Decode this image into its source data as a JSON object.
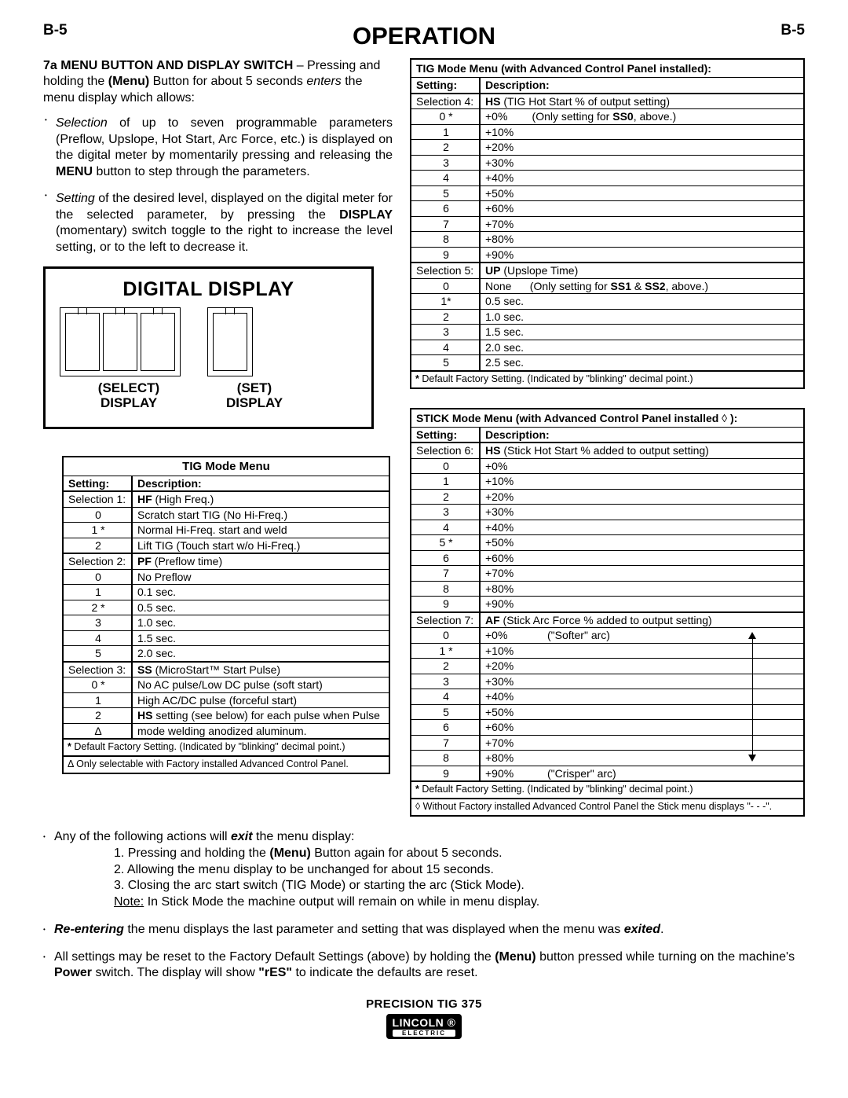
{
  "page_label": "B-5",
  "title": "OPERATION",
  "intro": {
    "heading": "7a MENU BUTTON AND DISPLAY SWITCH",
    "heading_suffix": " –",
    "line1a": "Pressing and holding the ",
    "line1b": "(Menu)",
    "line1c": " Button for about 5 seconds ",
    "line1d": "enters",
    "line1e": " the menu display which allows:",
    "bullet1a": "Selection",
    "bullet1b": " of up to seven programmable parameters (Preflow, Upslope, Hot Start, Arc Force, etc.) is dis­played on the digital meter by momentarily pressing and releasing the ",
    "bullet1c": "MENU",
    "bullet1d": " button to step through the parameters.",
    "bullet2a": "Setting",
    "bullet2b": " of the desired level, displayed on the digital meter for the selected parameter, by pressing the ",
    "bullet2c": "DISPLAY",
    "bullet2d": " (momentary) switch toggle to the right to increase the level setting, or to the left to decrease it."
  },
  "diagram": {
    "title": "DIGITAL DISPLAY",
    "select_top": "(SELECT)",
    "select_bot": "DISPLAY",
    "set_top": "(SET)",
    "set_bot": "DISPLAY"
  },
  "table1": {
    "caption": "TIG Mode Menu",
    "col1": "Setting:",
    "col2": "Description:",
    "rows": [
      {
        "s": "Selection 1:",
        "d_b": "HF",
        "d": " (High Freq.)",
        "sect": true
      },
      {
        "s": "0",
        "d": "Scratch start TIG (No Hi-Freq.)"
      },
      {
        "s": "1 *",
        "d": "Normal Hi-Freq. start and weld"
      },
      {
        "s": "2",
        "d": "Lift TIG (Touch start w/o Hi-Freq.)"
      },
      {
        "s": "Selection 2:",
        "d_b": "PF",
        "d": " (Preflow time)",
        "sect": true
      },
      {
        "s": "0",
        "d": "No Preflow"
      },
      {
        "s": "1",
        "d": "0.1 sec."
      },
      {
        "s": "2 *",
        "d": "0.5 sec."
      },
      {
        "s": "3",
        "d": "1.0 sec."
      },
      {
        "s": "4",
        "d": "1.5 sec."
      },
      {
        "s": "5",
        "d": "2.0 sec."
      },
      {
        "s": "Selection 3:",
        "d_b": "SS",
        "d": " (MicroStart™ Start Pulse)",
        "sect": true
      },
      {
        "s": "0 *",
        "d": "No AC pulse/Low DC pulse (soft start)"
      },
      {
        "s": "1",
        "d": "High AC/DC pulse (forceful start)"
      },
      {
        "s": "2",
        "d_b": "HS",
        "d": " setting (see below) for each pulse when Pulse"
      },
      {
        "s": "Δ",
        "d": "mode welding anodized aluminum.",
        "last": true
      }
    ],
    "note1_pre": "*",
    "note1": " Default Factory Setting. (Indicated by \"blinking\" decimal point.)",
    "note2_pre": "Δ",
    "note2": " Only selectable with Factory installed Advanced Control Panel."
  },
  "table2": {
    "caption": "TIG Mode Menu (with Advanced Control Panel installed):",
    "col1": "Setting:",
    "col2": "Description:",
    "rows": [
      {
        "s": "Selection 4:",
        "d_b": "HS",
        "d": " (TIG Hot Start % of output setting)",
        "sect": true
      },
      {
        "s": "0 *",
        "d": "+0%        (Only setting for ",
        "d_b2": "SS0",
        "d2": ", above.)"
      },
      {
        "s": "1",
        "d": "+10%"
      },
      {
        "s": "2",
        "d": "+20%"
      },
      {
        "s": "3",
        "d": "+30%"
      },
      {
        "s": "4",
        "d": "+40%"
      },
      {
        "s": "5",
        "d": "+50%"
      },
      {
        "s": "6",
        "d": "+60%"
      },
      {
        "s": "7",
        "d": "+70%"
      },
      {
        "s": "8",
        "d": "+80%"
      },
      {
        "s": "9",
        "d": "+90%"
      },
      {
        "s": "Selection 5:",
        "d_b": "UP",
        "d": " (Upslope Time)",
        "sect": true
      },
      {
        "s": "0",
        "d": "None      (Only setting for ",
        "d_b2": "SS1",
        "d2": " & ",
        "d_b3": "SS2",
        "d3": ", above.)"
      },
      {
        "s": "1*",
        "d": "0.5 sec."
      },
      {
        "s": "2",
        "d": "1.0 sec."
      },
      {
        "s": "3",
        "d": "1.5 sec."
      },
      {
        "s": "4",
        "d": "2.0 sec."
      },
      {
        "s": "5",
        "d": "2.5 sec.",
        "last": true
      }
    ],
    "note1_pre": "*",
    "note1": " Default Factory Setting. (Indicated by \"blinking\" decimal point.)"
  },
  "table3": {
    "caption_a": "STICK Mode Menu ",
    "caption_b": "(with Advanced Control Panel installed",
    "caption_c": " ◊ ",
    "caption_d": "):",
    "col1": "Setting:",
    "col2": "Description:",
    "rows": [
      {
        "s": "Selection 6:",
        "d_b": "HS",
        "d": " (Stick Hot Start % added to output setting)",
        "sect": true
      },
      {
        "s": "0",
        "d": "+0%"
      },
      {
        "s": "1",
        "d": "+10%"
      },
      {
        "s": "2",
        "d": "+20%"
      },
      {
        "s": "3",
        "d": "+30%"
      },
      {
        "s": "4",
        "d": "+40%"
      },
      {
        "s": "5 *",
        "d": "+50%"
      },
      {
        "s": "6",
        "d": "+60%"
      },
      {
        "s": "7",
        "d": "+70%"
      },
      {
        "s": "8",
        "d": "+80%"
      },
      {
        "s": "9",
        "d": "+90%"
      },
      {
        "s": "Selection 7:",
        "d_b": "AF",
        "d": " (Stick Arc Force % added to output setting)",
        "sect": true
      },
      {
        "s": "0",
        "d": "+0%             (\"Softer\" arc)"
      },
      {
        "s": "1 *",
        "d": "+10%"
      },
      {
        "s": "2",
        "d": "+20%"
      },
      {
        "s": "3",
        "d": "+30%"
      },
      {
        "s": "4",
        "d": "+40%"
      },
      {
        "s": "5",
        "d": "+50%"
      },
      {
        "s": "6",
        "d": "+60%"
      },
      {
        "s": "7",
        "d": "+70%"
      },
      {
        "s": "8",
        "d": "+80%"
      },
      {
        "s": "9",
        "d": "+90%           (\"Crisper\" arc)",
        "last": true
      }
    ],
    "note1_pre": "*",
    "note1": " Default Factory Setting. (Indicated by \"blinking\" decimal point.)",
    "note2_pre": "◊",
    "note2": " Without Factory installed Advanced Control Panel the Stick menu displays \"- - -\"."
  },
  "bottom": {
    "item1_lead": "Any of the following actions will ",
    "item1_bi": "exit",
    "item1_tail": " the menu display:",
    "n1": "1. Pressing and holding the ",
    "n1b": "(Menu)",
    "n1t": " Button again for about 5 seconds.",
    "n2": "2. Allowing the menu display to be unchanged for about 15 seconds.",
    "n3": "3. Closing the arc start switch (TIG Mode) or starting the arc (Stick Mode).",
    "n4a": "Note:",
    "n4b": " In Stick Mode the machine output will remain on while in menu display.",
    "item2_a": "Re-entering",
    "item2_b": " the menu displays the last parameter and setting that was displayed when the menu was ",
    "item2_c": "exited",
    "item2_d": ".",
    "item3_a": "All settings may be reset to the Factory Default Settings (above) by holding the ",
    "item3_b": "(Menu)",
    "item3_c": " button pressed while turning on the machine's ",
    "item3_d": "Power",
    "item3_e": " switch. The display will show ",
    "item3_f": "\"rES\"",
    "item3_g": " to indicate the defaults are reset."
  },
  "footer": {
    "model": "PRECISION TIG 375",
    "brand_top": "LINCOLN",
    "brand_bot": "ELECTRIC"
  }
}
